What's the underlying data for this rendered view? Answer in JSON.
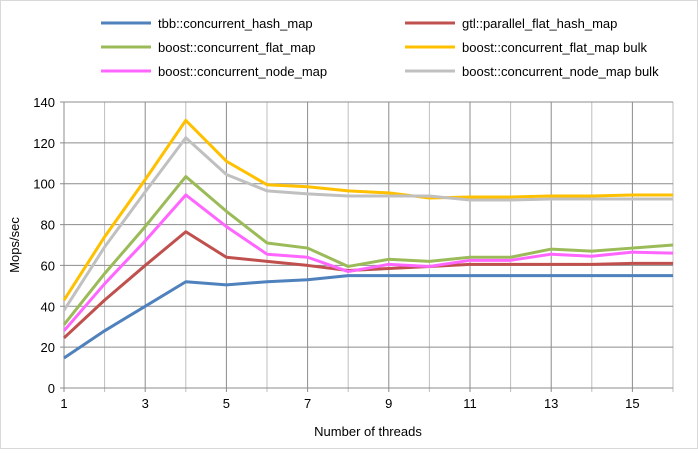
{
  "chart_data": {
    "type": "line",
    "title": "",
    "xlabel": "Number of threads",
    "ylabel": "Mops/sec",
    "xlim": [
      1,
      16
    ],
    "ylim": [
      0,
      140
    ],
    "xticks": [
      1,
      3,
      5,
      7,
      9,
      11,
      13,
      15
    ],
    "yticks": [
      0,
      20,
      40,
      60,
      80,
      100,
      120,
      140
    ],
    "grid": true,
    "legend_position": "top",
    "x": [
      1,
      2,
      3,
      4,
      5,
      6,
      7,
      8,
      9,
      10,
      11,
      12,
      13,
      14,
      15,
      16
    ],
    "series": [
      {
        "name": "tbb::concurrent_hash_map",
        "color": "#4f81bd",
        "values": [
          14.7,
          28,
          40,
          52,
          50.5,
          52,
          53,
          55,
          55,
          55,
          55,
          55,
          55,
          55,
          55,
          55
        ]
      },
      {
        "name": "gtl::parallel_flat_hash_map",
        "color": "#c0504d",
        "values": [
          24.5,
          43,
          60,
          76.5,
          64,
          62,
          60,
          57.5,
          58.5,
          59.5,
          60.5,
          60.5,
          60.5,
          60.5,
          61,
          61
        ]
      },
      {
        "name": "boost::concurrent_flat_map",
        "color": "#9bbb59",
        "values": [
          31,
          56,
          79,
          103.5,
          86.5,
          71,
          68.5,
          59.5,
          63,
          62,
          64,
          64,
          68,
          67,
          68.5,
          70
        ]
      },
      {
        "name": "boost::concurrent_flat_map bulk",
        "color": "#ffc000",
        "values": [
          43,
          74,
          102,
          131,
          111,
          99.5,
          98.5,
          96.5,
          95.5,
          93,
          93.5,
          93.5,
          94,
          94,
          94.5,
          94.5
        ]
      },
      {
        "name": "boost::concurrent_node_map",
        "color": "#ff66ff",
        "values": [
          28,
          51,
          72,
          94.5,
          79,
          65.5,
          64,
          57,
          60.5,
          59.5,
          62.5,
          62.5,
          65.5,
          64.5,
          66.5,
          66
        ]
      },
      {
        "name": "boost::concurrent_node_map bulk",
        "color": "#c0c0c0",
        "values": [
          38,
          69,
          96,
          122.5,
          104.5,
          96.5,
          95,
          94,
          94,
          94,
          92,
          92,
          92.5,
          92.5,
          92.5,
          92.5
        ]
      }
    ]
  }
}
